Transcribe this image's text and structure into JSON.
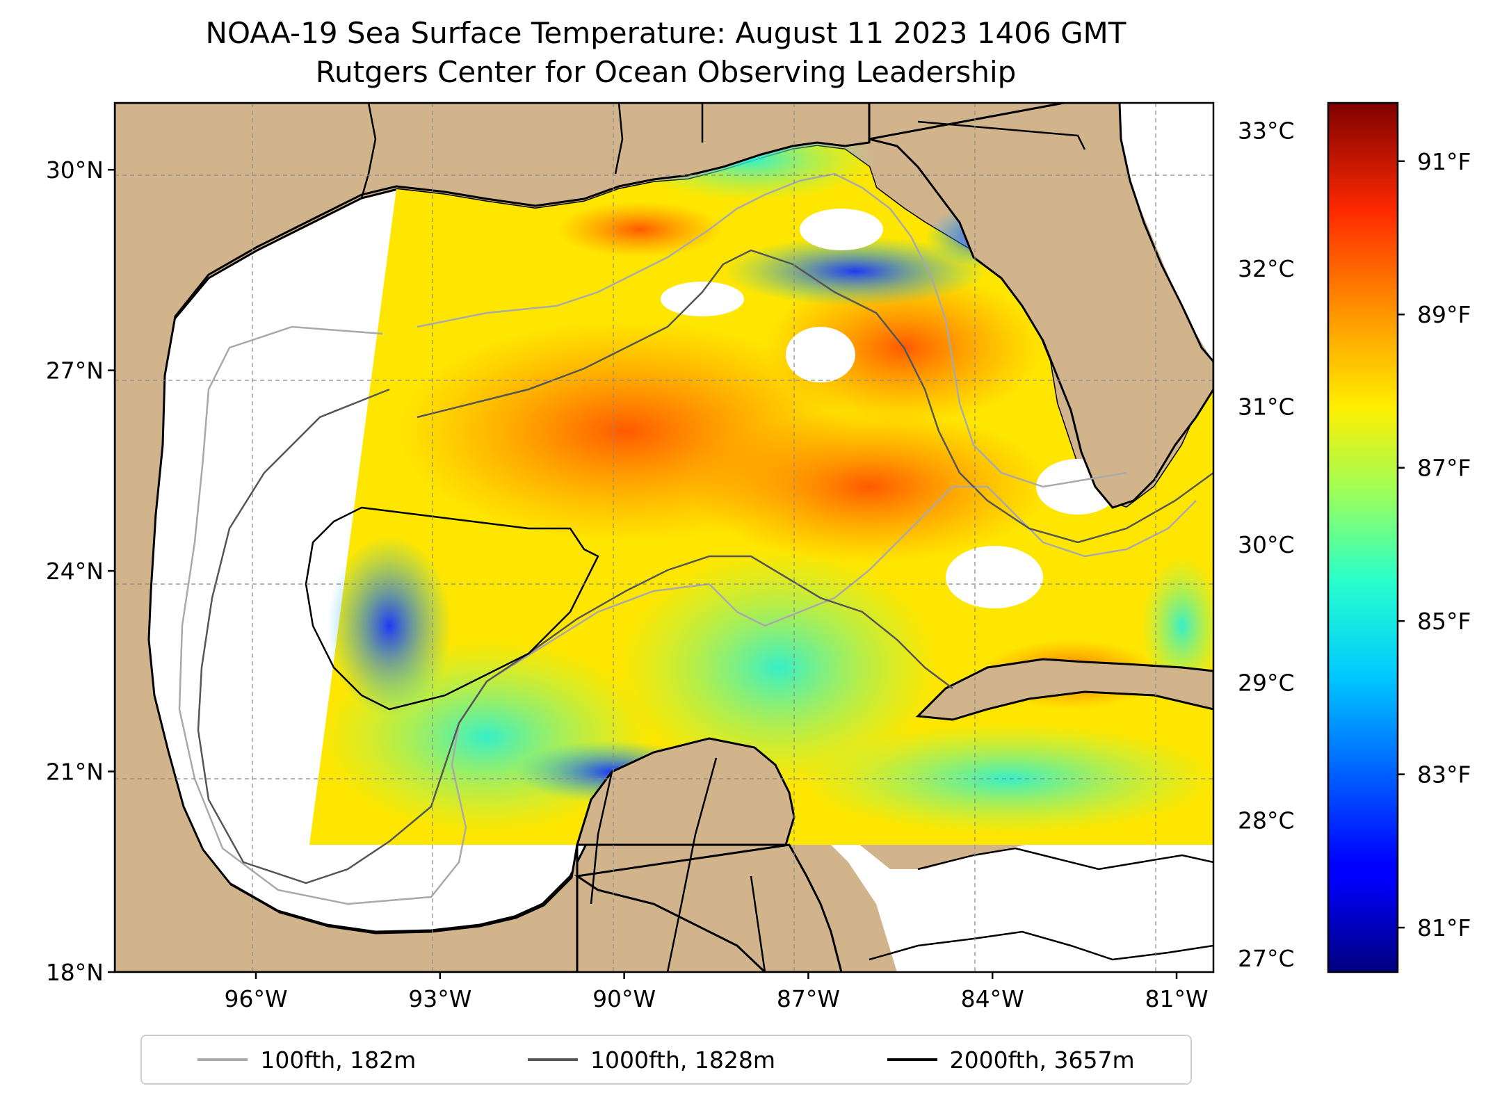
{
  "title_line1": "NOAA-19 Sea Surface Temperature: August 11 2023 1406 GMT",
  "title_line2": "Rutgers Center for Ocean Observing Leadership",
  "map": {
    "lon_range": [
      -98.3,
      -80.4
    ],
    "lat_range": [
      18.0,
      31.0
    ],
    "lat_ticks": [
      {
        "value": 30,
        "label": "30°N"
      },
      {
        "value": 27,
        "label": "27°N"
      },
      {
        "value": 24,
        "label": "24°N"
      },
      {
        "value": 21,
        "label": "21°N"
      },
      {
        "value": 18,
        "label": "18°N"
      }
    ],
    "lon_ticks": [
      {
        "value": -96,
        "label": "96°W"
      },
      {
        "value": -93,
        "label": "93°W"
      },
      {
        "value": -90,
        "label": "90°W"
      },
      {
        "value": -87,
        "label": "87°W"
      },
      {
        "value": -84,
        "label": "84°W"
      },
      {
        "value": -81,
        "label": "81°W"
      }
    ],
    "land_color": "#d2b48c",
    "no_data_color": "#ffffff",
    "grid": true
  },
  "colorbar": {
    "colormap": "jet",
    "celsius_ticks": [
      {
        "value": 33,
        "label": "33°C"
      },
      {
        "value": 32,
        "label": "32°C"
      },
      {
        "value": 31,
        "label": "31°C"
      },
      {
        "value": 30,
        "label": "30°C"
      },
      {
        "value": 29,
        "label": "29°C"
      },
      {
        "value": 28,
        "label": "28°C"
      },
      {
        "value": 27,
        "label": "27°C"
      }
    ],
    "fahrenheit_ticks": [
      {
        "value": 91,
        "label": "91°F"
      },
      {
        "value": 89,
        "label": "89°F"
      },
      {
        "value": 87,
        "label": "87°F"
      },
      {
        "value": 85,
        "label": "85°F"
      },
      {
        "value": 83,
        "label": "83°F"
      },
      {
        "value": 81,
        "label": "81°F"
      }
    ]
  },
  "legend": [
    {
      "label": "100fth, 182m",
      "color": "#a9a9a9"
    },
    {
      "label": "1000fth, 1828m",
      "color": "#555555"
    },
    {
      "label": "2000fth, 3657m",
      "color": "#000000"
    }
  ]
}
